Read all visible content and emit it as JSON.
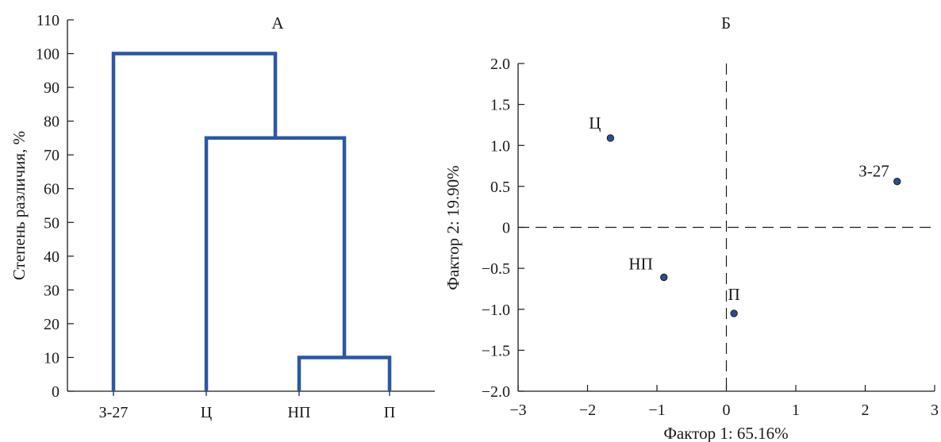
{
  "colors": {
    "dendrogram_line": "#2b57a5",
    "point_fill": "#2c4f8c",
    "axis": "#1a1a1a"
  },
  "chart_data": [
    {
      "type": "dendrogram",
      "title": "А",
      "ylabel": "Степень различия, %",
      "xlabel": "",
      "ylim": [
        0,
        110
      ],
      "yticks": [
        0,
        10,
        20,
        30,
        40,
        50,
        60,
        70,
        80,
        90,
        100,
        110
      ],
      "leaves": [
        "З-27",
        "Ц",
        "НП",
        "П"
      ],
      "merges": [
        {
          "left": "НП",
          "right": "П",
          "height": 10
        },
        {
          "left": "Ц",
          "right": "НП+П",
          "height": 75
        },
        {
          "left": "З-27",
          "right": "Ц+НП+П",
          "height": 100
        }
      ],
      "grid": false
    },
    {
      "type": "scatter",
      "title": "Б",
      "xlabel": "Фактор 1: 65.16%",
      "ylabel": "Фактор 2: 19.90%",
      "xlim": [
        -3,
        3
      ],
      "ylim": [
        -2.0,
        2.0
      ],
      "xticks": [
        "−3",
        "−2",
        "−1",
        "0",
        "1",
        "2",
        "3"
      ],
      "xtick_values": [
        -3,
        -2,
        -1,
        0,
        1,
        2,
        3
      ],
      "yticks": [
        "2.0",
        "1.5",
        "1.0",
        "0.5",
        "0",
        "−0.5",
        "−1.0",
        "−1.5",
        "−2.0"
      ],
      "ytick_values": [
        2.0,
        1.5,
        1.0,
        0.5,
        0,
        -0.5,
        -1.0,
        -1.5,
        -2.0
      ],
      "reference_lines": {
        "x": 0,
        "y": 0,
        "style": "dashed"
      },
      "points": [
        {
          "label": "Ц",
          "x": -1.67,
          "y": 1.09
        },
        {
          "label": "З-27",
          "x": 2.46,
          "y": 0.56
        },
        {
          "label": "НП",
          "x": -0.9,
          "y": -0.61
        },
        {
          "label": "П",
          "x": 0.11,
          "y": -1.05
        }
      ],
      "grid": false
    }
  ]
}
